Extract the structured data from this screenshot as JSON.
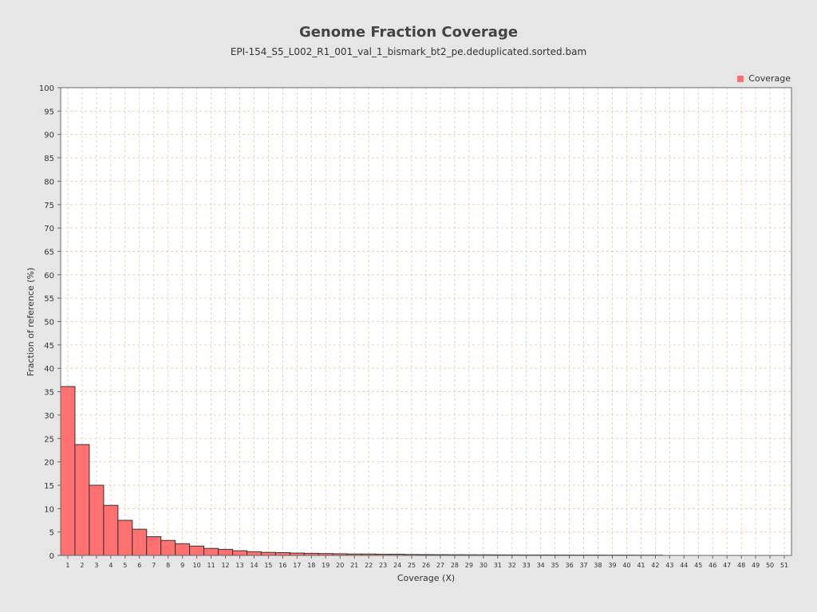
{
  "chart_data": {
    "type": "bar",
    "title": "Genome Fraction Coverage",
    "subtitle": "EPI-154_S5_L002_R1_001_val_1_bismark_bt2_pe.deduplicated.sorted.bam",
    "xlabel": "Coverage (X)",
    "ylabel": "Fraction of reference (%)",
    "ylim": [
      0,
      100
    ],
    "yticks": [
      0,
      5,
      10,
      15,
      20,
      25,
      30,
      35,
      40,
      45,
      50,
      55,
      60,
      65,
      70,
      75,
      80,
      85,
      90,
      95,
      100
    ],
    "grid": true,
    "legend_position": "top-right",
    "series": [
      {
        "name": "Coverage",
        "color": "#ff7070",
        "values": [
          36.1,
          23.7,
          15.0,
          10.7,
          7.5,
          5.6,
          4.0,
          3.2,
          2.5,
          2.0,
          1.5,
          1.3,
          1.0,
          0.8,
          0.65,
          0.6,
          0.5,
          0.45,
          0.4,
          0.35,
          0.3,
          0.3,
          0.25,
          0.25,
          0.2,
          0.18,
          0.16,
          0.15,
          0.14,
          0.13,
          0.12,
          0.11,
          0.1,
          0.1,
          0.09,
          0.09,
          0.08,
          0.08,
          0.07,
          0.07,
          0.06,
          0.06,
          0.0,
          0.0,
          0.0,
          0.0,
          0.0,
          0.0,
          0.0,
          0.0,
          0.0
        ]
      }
    ],
    "categories": [
      "1",
      "2",
      "3",
      "4",
      "5",
      "6",
      "7",
      "8",
      "9",
      "10",
      "11",
      "12",
      "13",
      "14",
      "15",
      "16",
      "17",
      "18",
      "19",
      "20",
      "21",
      "22",
      "23",
      "24",
      "25",
      "26",
      "27",
      "28",
      "29",
      "30",
      "31",
      "32",
      "33",
      "34",
      "35",
      "36",
      "37",
      "38",
      "39",
      "40",
      "41",
      "42",
      "43",
      "44",
      "45",
      "46",
      "47",
      "48",
      "49",
      "50",
      "51"
    ]
  }
}
